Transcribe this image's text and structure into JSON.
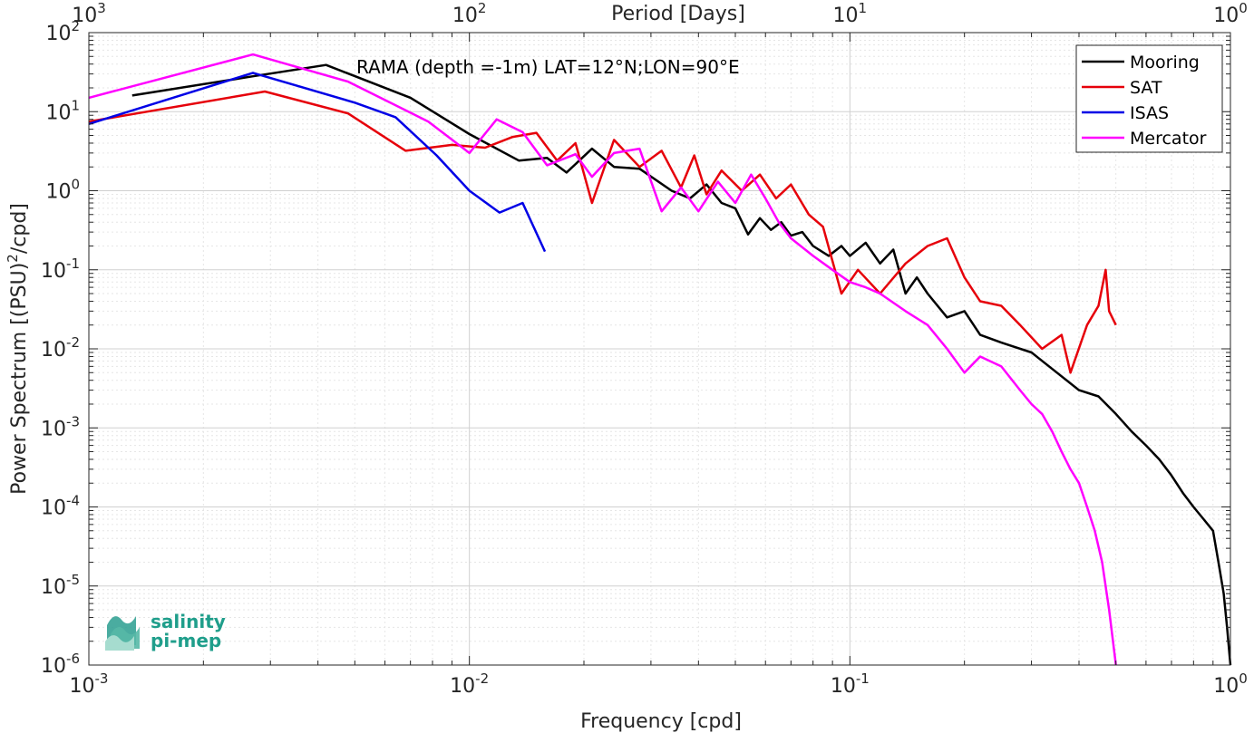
{
  "chart_data": {
    "type": "line",
    "x_scale": "log",
    "y_scale": "log",
    "xlabel": "Frequency [cpd]",
    "ylabel": "Power Spectrum [(PSU)",
    "ylabel_sup": "2",
    "ylabel_tail": "/cpd]",
    "top_xlabel": "Period [Days]",
    "annotation": "RAMA (depth =-1m) LAT=12°N;LON=90°E",
    "xlim": [
      0.001,
      1
    ],
    "ylim": [
      1e-06,
      100
    ],
    "grid": true,
    "minor_grid": true,
    "legend_position": "top-right",
    "x_ticks": [
      {
        "base": "10",
        "exp": "-3",
        "value": 0.001
      },
      {
        "base": "10",
        "exp": "-2",
        "value": 0.01
      },
      {
        "base": "10",
        "exp": "-1",
        "value": 0.1
      },
      {
        "base": "10",
        "exp": "0",
        "value": 1
      }
    ],
    "top_x_ticks": [
      {
        "base": "10",
        "exp": "3",
        "value": 0.001
      },
      {
        "base": "10",
        "exp": "2",
        "value": 0.01
      },
      {
        "base": "10",
        "exp": "1",
        "value": 0.1
      },
      {
        "base": "10",
        "exp": "0",
        "value": 1
      }
    ],
    "y_ticks": [
      {
        "base": "10",
        "exp": "-6",
        "value": 1e-06
      },
      {
        "base": "10",
        "exp": "-5",
        "value": 1e-05
      },
      {
        "base": "10",
        "exp": "-4",
        "value": 0.0001
      },
      {
        "base": "10",
        "exp": "-3",
        "value": 0.001
      },
      {
        "base": "10",
        "exp": "-2",
        "value": 0.01
      },
      {
        "base": "10",
        "exp": "-1",
        "value": 0.1
      },
      {
        "base": "10",
        "exp": "0",
        "value": 1
      },
      {
        "base": "10",
        "exp": "1",
        "value": 10
      },
      {
        "base": "10",
        "exp": "2",
        "value": 100
      }
    ],
    "series": [
      {
        "name": "Mooring",
        "color": "#000000",
        "points": [
          [
            0.0013,
            16
          ],
          [
            0.0027,
            28
          ],
          [
            0.0042,
            39
          ],
          [
            0.007,
            15
          ],
          [
            0.01,
            5.2
          ],
          [
            0.0135,
            2.4
          ],
          [
            0.016,
            2.6
          ],
          [
            0.018,
            1.7
          ],
          [
            0.021,
            3.4
          ],
          [
            0.024,
            2.0
          ],
          [
            0.028,
            1.9
          ],
          [
            0.034,
            1.0
          ],
          [
            0.038,
            0.8
          ],
          [
            0.042,
            1.2
          ],
          [
            0.046,
            0.7
          ],
          [
            0.05,
            0.6
          ],
          [
            0.054,
            0.28
          ],
          [
            0.058,
            0.45
          ],
          [
            0.062,
            0.32
          ],
          [
            0.066,
            0.4
          ],
          [
            0.07,
            0.27
          ],
          [
            0.075,
            0.3
          ],
          [
            0.08,
            0.2
          ],
          [
            0.088,
            0.15
          ],
          [
            0.095,
            0.2
          ],
          [
            0.1,
            0.15
          ],
          [
            0.11,
            0.22
          ],
          [
            0.12,
            0.12
          ],
          [
            0.13,
            0.18
          ],
          [
            0.14,
            0.05
          ],
          [
            0.15,
            0.08
          ],
          [
            0.16,
            0.05
          ],
          [
            0.18,
            0.025
          ],
          [
            0.2,
            0.03
          ],
          [
            0.22,
            0.015
          ],
          [
            0.25,
            0.012
          ],
          [
            0.3,
            0.009
          ],
          [
            0.35,
            0.005
          ],
          [
            0.4,
            0.003
          ],
          [
            0.45,
            0.0025
          ],
          [
            0.5,
            0.0015
          ],
          [
            0.55,
            0.0009
          ],
          [
            0.6,
            0.0006
          ],
          [
            0.65,
            0.0004
          ],
          [
            0.7,
            0.00025
          ],
          [
            0.75,
            0.00015
          ],
          [
            0.8,
            0.0001
          ],
          [
            0.85,
            7e-05
          ],
          [
            0.9,
            5e-05
          ],
          [
            0.93,
            2e-05
          ],
          [
            0.96,
            8e-06
          ],
          [
            0.98,
            3e-06
          ],
          [
            1.0,
            1e-06
          ]
        ]
      },
      {
        "name": "SAT",
        "color": "#e6000a",
        "points": [
          [
            0.001,
            7.5
          ],
          [
            0.0029,
            18
          ],
          [
            0.0048,
            9.5
          ],
          [
            0.0068,
            3.2
          ],
          [
            0.009,
            3.8
          ],
          [
            0.011,
            3.5
          ],
          [
            0.013,
            4.8
          ],
          [
            0.015,
            5.4
          ],
          [
            0.017,
            2.4
          ],
          [
            0.019,
            4.0
          ],
          [
            0.021,
            0.7
          ],
          [
            0.024,
            4.4
          ],
          [
            0.028,
            2.0
          ],
          [
            0.032,
            3.2
          ],
          [
            0.036,
            1.1
          ],
          [
            0.039,
            2.8
          ],
          [
            0.042,
            0.9
          ],
          [
            0.046,
            1.8
          ],
          [
            0.052,
            1.0
          ],
          [
            0.058,
            1.6
          ],
          [
            0.064,
            0.8
          ],
          [
            0.07,
            1.2
          ],
          [
            0.078,
            0.5
          ],
          [
            0.085,
            0.35
          ],
          [
            0.095,
            0.05
          ],
          [
            0.105,
            0.1
          ],
          [
            0.12,
            0.05
          ],
          [
            0.14,
            0.12
          ],
          [
            0.16,
            0.2
          ],
          [
            0.18,
            0.25
          ],
          [
            0.2,
            0.08
          ],
          [
            0.22,
            0.04
          ],
          [
            0.25,
            0.035
          ],
          [
            0.28,
            0.02
          ],
          [
            0.32,
            0.01
          ],
          [
            0.36,
            0.015
          ],
          [
            0.38,
            0.005
          ],
          [
            0.42,
            0.02
          ],
          [
            0.45,
            0.035
          ],
          [
            0.47,
            0.1
          ],
          [
            0.48,
            0.03
          ],
          [
            0.5,
            0.02
          ]
        ]
      },
      {
        "name": "ISAS",
        "color": "#0000e6",
        "points": [
          [
            0.001,
            7
          ],
          [
            0.0027,
            31
          ],
          [
            0.005,
            13
          ],
          [
            0.0064,
            8.5
          ],
          [
            0.0082,
            2.8
          ],
          [
            0.01,
            1.0
          ],
          [
            0.012,
            0.53
          ],
          [
            0.0138,
            0.7
          ],
          [
            0.0158,
            0.17
          ]
        ]
      },
      {
        "name": "Mercator",
        "color": "#ff00ff",
        "points": [
          [
            0.001,
            15
          ],
          [
            0.0027,
            53
          ],
          [
            0.0048,
            24
          ],
          [
            0.0078,
            7.5
          ],
          [
            0.01,
            3.0
          ],
          [
            0.0118,
            8.0
          ],
          [
            0.0138,
            5.5
          ],
          [
            0.016,
            2.1
          ],
          [
            0.019,
            2.9
          ],
          [
            0.021,
            1.5
          ],
          [
            0.024,
            3.0
          ],
          [
            0.028,
            3.4
          ],
          [
            0.032,
            0.55
          ],
          [
            0.036,
            1.1
          ],
          [
            0.04,
            0.55
          ],
          [
            0.045,
            1.3
          ],
          [
            0.05,
            0.7
          ],
          [
            0.055,
            1.6
          ],
          [
            0.06,
            0.8
          ],
          [
            0.065,
            0.4
          ],
          [
            0.07,
            0.25
          ],
          [
            0.08,
            0.15
          ],
          [
            0.09,
            0.1
          ],
          [
            0.1,
            0.07
          ],
          [
            0.11,
            0.06
          ],
          [
            0.12,
            0.05
          ],
          [
            0.14,
            0.03
          ],
          [
            0.16,
            0.02
          ],
          [
            0.18,
            0.01
          ],
          [
            0.2,
            0.005
          ],
          [
            0.22,
            0.008
          ],
          [
            0.25,
            0.006
          ],
          [
            0.28,
            0.003
          ],
          [
            0.3,
            0.002
          ],
          [
            0.32,
            0.0015
          ],
          [
            0.34,
            0.0009
          ],
          [
            0.36,
            0.0005
          ],
          [
            0.38,
            0.0003
          ],
          [
            0.4,
            0.0002
          ],
          [
            0.42,
            0.0001
          ],
          [
            0.44,
            5e-05
          ],
          [
            0.46,
            2e-05
          ],
          [
            0.48,
            5e-06
          ],
          [
            0.5,
            1e-06
          ]
        ]
      }
    ]
  },
  "legend": {
    "items": [
      {
        "label": "Mooring",
        "color": "#000000"
      },
      {
        "label": "SAT",
        "color": "#e6000a"
      },
      {
        "label": "ISAS",
        "color": "#0000e6"
      },
      {
        "label": "Mercator",
        "color": "#ff00ff"
      }
    ]
  },
  "logo": {
    "line1": "salinity",
    "line2": "pi-mep",
    "color": "#1f9e8b"
  }
}
